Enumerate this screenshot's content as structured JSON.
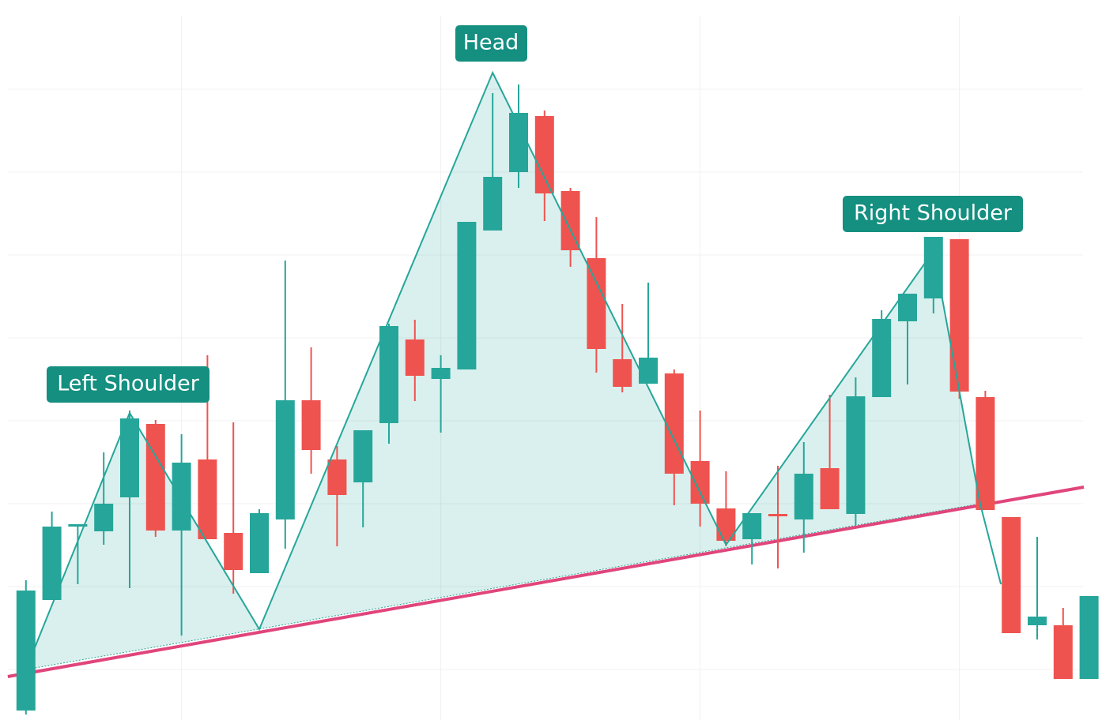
{
  "chart_data": {
    "type": "candlestick",
    "up_color": "#26a69a",
    "down_color": "#ef5350",
    "open": [
      12,
      152,
      245,
      239,
      282,
      375,
      240,
      330,
      237,
      186,
      254,
      405,
      330,
      301,
      376,
      482,
      432,
      444,
      620,
      694,
      765,
      670,
      585,
      457,
      426,
      439,
      328,
      268,
      229,
      261,
      254,
      319,
      261,
      409,
      505,
      534,
      609,
      409,
      257,
      120,
      120,
      52
    ],
    "high": [
      177,
      264,
      248,
      339,
      392,
      380,
      362,
      462,
      377,
      267,
      582,
      472,
      347,
      367,
      502,
      507,
      462,
      631,
      794,
      805,
      772,
      674,
      637,
      527,
      554,
      444,
      392,
      315,
      262,
      322,
      352,
      412,
      434,
      519,
      540,
      612,
      609,
      417,
      257,
      232,
      142,
      157
    ],
    "low": [
      7,
      152,
      172,
      222,
      167,
      232,
      107,
      229,
      160,
      186,
      217,
      312,
      220,
      244,
      350,
      404,
      364,
      444,
      620,
      674,
      632,
      574,
      440,
      415,
      426,
      272,
      245,
      220,
      197,
      192,
      212,
      267,
      247,
      409,
      425,
      515,
      407,
      266,
      110,
      102,
      52,
      52
    ],
    "close": [
      164,
      245,
      248,
      274,
      382,
      240,
      326,
      229,
      190,
      262,
      405,
      342,
      285,
      367,
      499,
      436,
      446,
      631,
      688,
      769,
      667,
      595,
      470,
      422,
      459,
      312,
      274,
      227,
      262,
      258,
      312,
      267,
      410,
      508,
      540,
      612,
      416,
      266,
      110,
      131,
      52,
      157
    ],
    "pattern": {
      "color": "#26a69a",
      "fill": "rgba(38,166,154,0.17)",
      "x": [
        0,
        4,
        9,
        18,
        27,
        35,
        36.8,
        37.6
      ],
      "values": [
        64,
        389,
        115,
        820,
        222,
        594,
        274,
        172
      ]
    },
    "neckline": {
      "color": "#e0457b",
      "x": [
        -0.7,
        40.8
      ],
      "values": [
        55,
        295
      ]
    },
    "annotations": [
      "Left Shoulder",
      "Head",
      "Right Shoulder"
    ],
    "xlim": [
      -1,
      41.5
    ],
    "ylim": [
      0,
      912
    ],
    "xticks": [
      6,
      16,
      26,
      36
    ],
    "yticks": [
      64,
      169,
      274,
      379,
      484,
      589,
      694,
      799
    ],
    "grid": true
  }
}
